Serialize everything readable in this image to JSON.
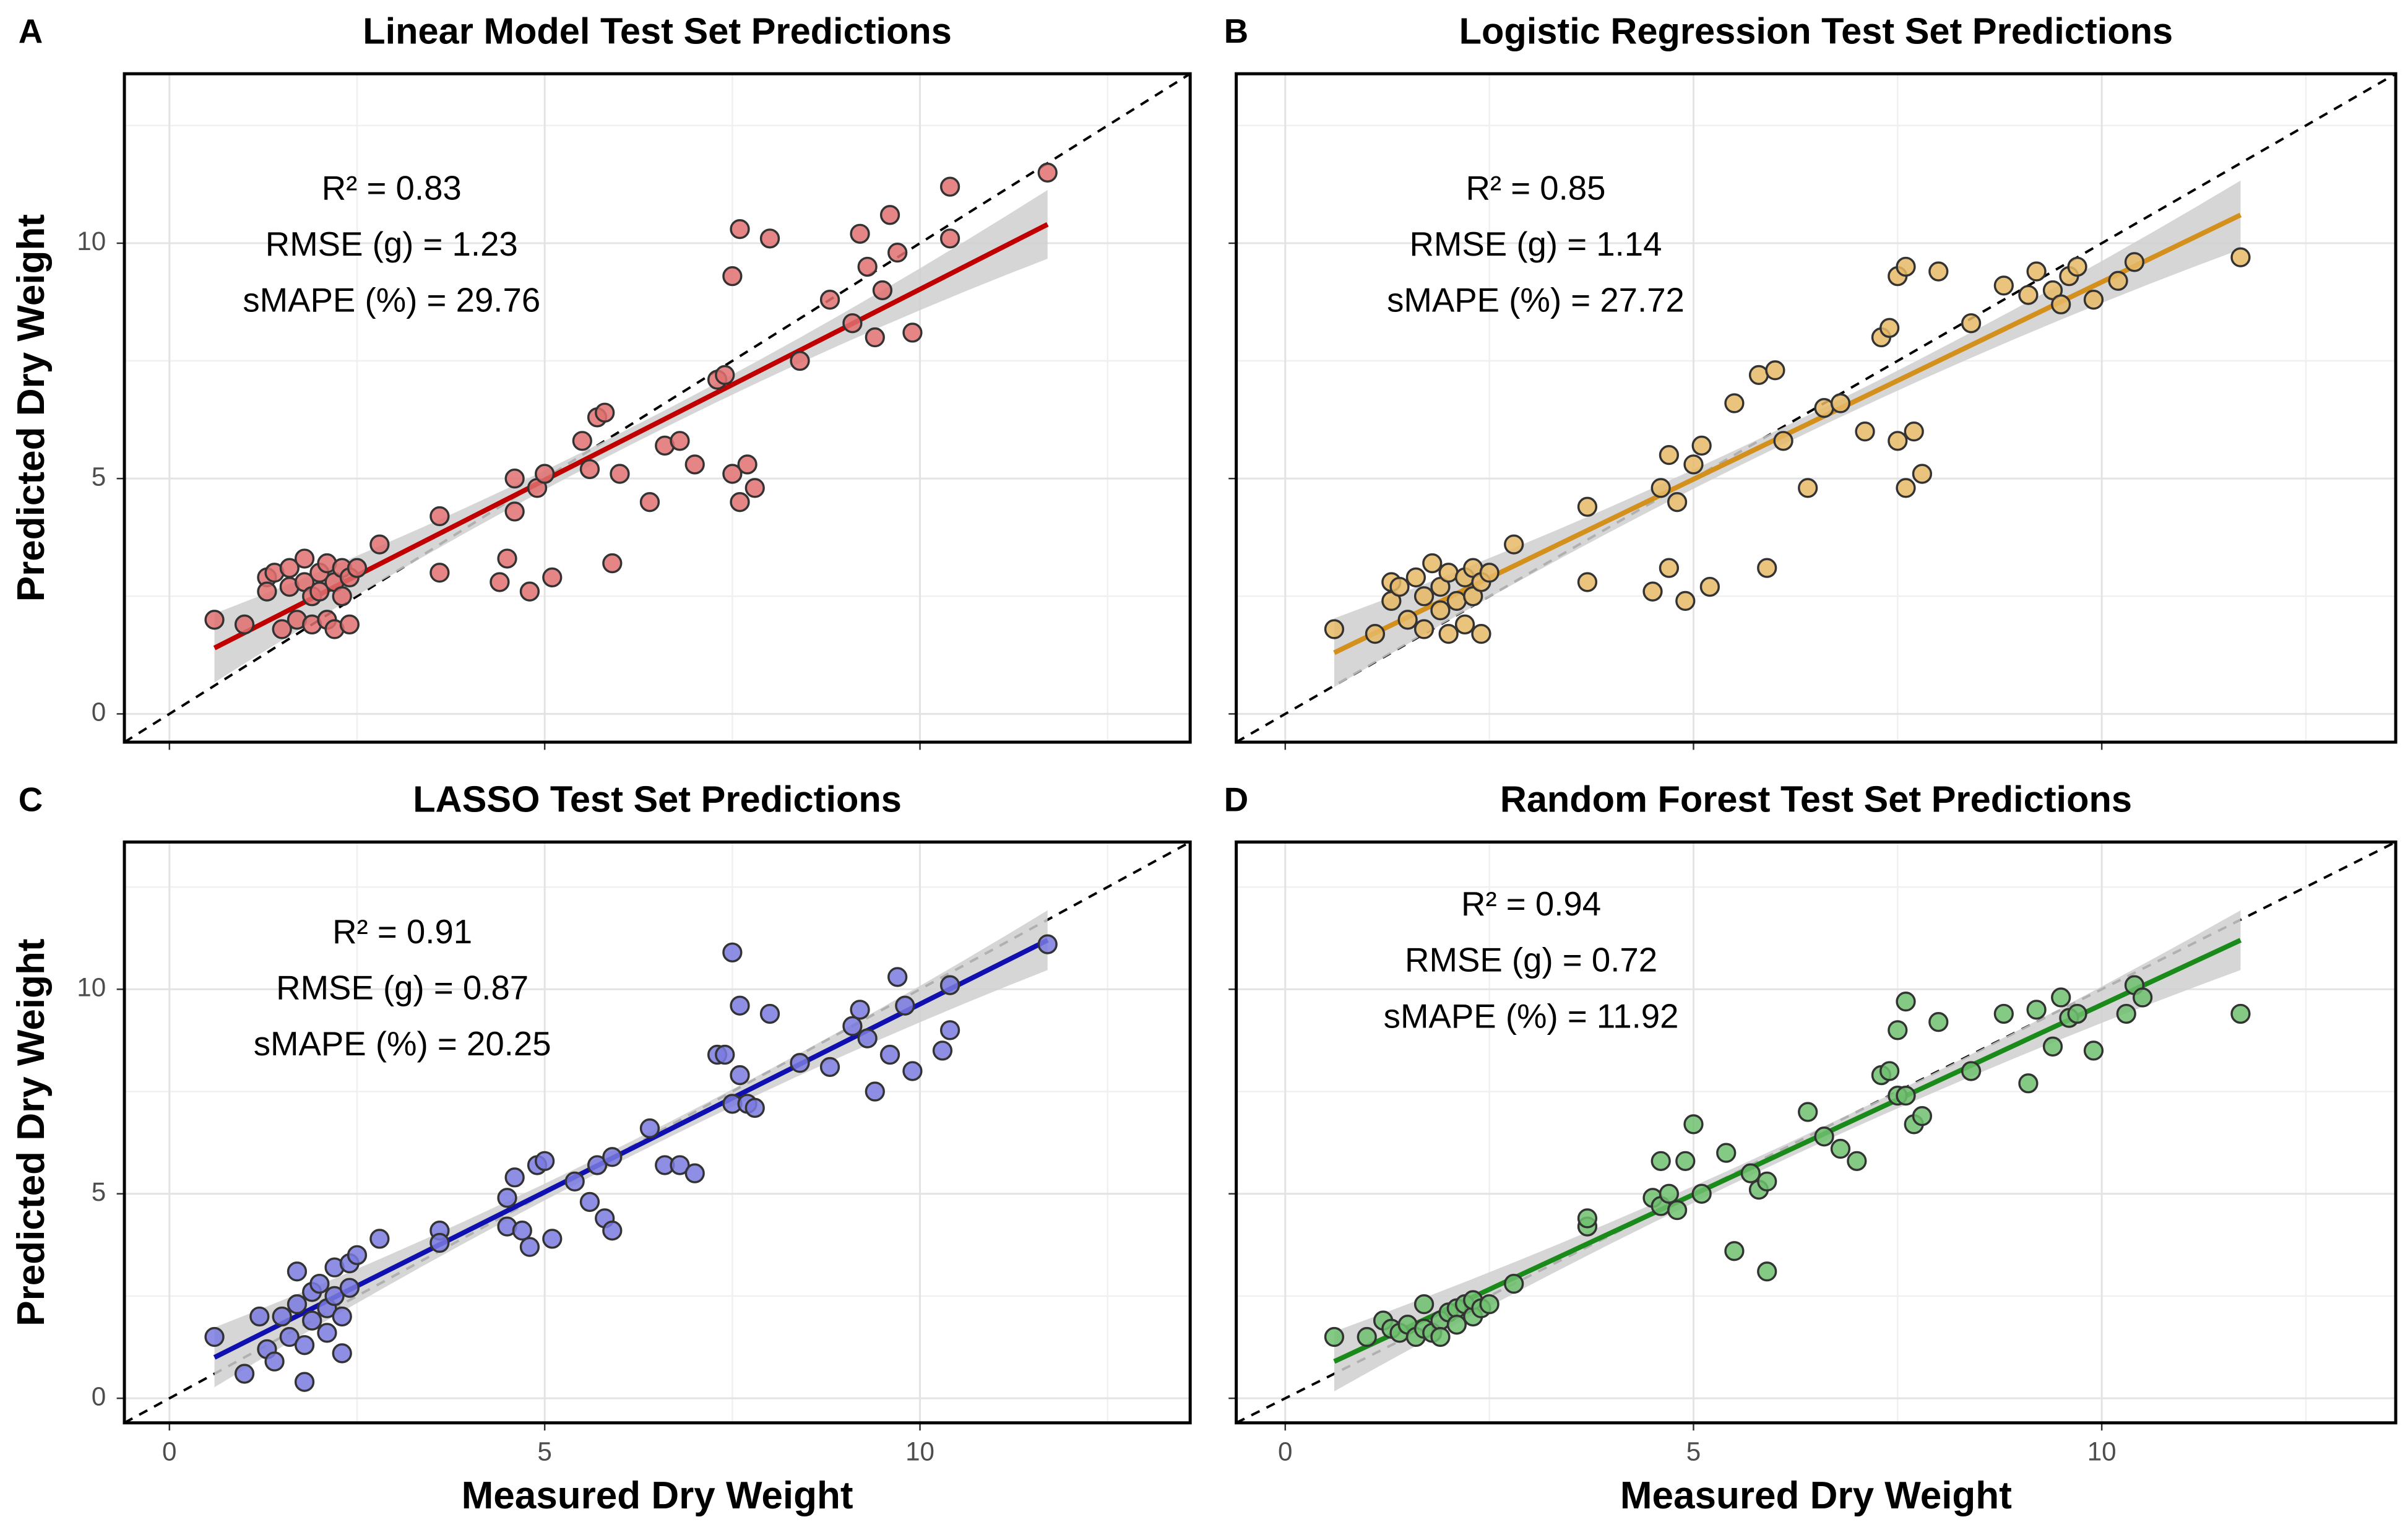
{
  "chart_data": [
    {
      "type": "scatter",
      "panel": "A",
      "title": "Linear Model Test Set Predictions",
      "ylabel": "Predicted Dry Weight",
      "annotations": [
        "R² =  0.83",
        "RMSE (g) =  1.23",
        "sMAPE (%) =  29.76"
      ],
      "color": "#e07070",
      "line_color": "#c00000",
      "x": [
        0.6,
        1.0,
        1.3,
        1.3,
        1.4,
        1.5,
        1.6,
        1.6,
        1.7,
        1.8,
        1.8,
        1.9,
        1.9,
        2.0,
        2.0,
        2.1,
        2.1,
        2.2,
        2.2,
        2.3,
        2.3,
        2.4,
        2.4,
        2.5,
        2.8,
        3.6,
        3.6,
        4.4,
        4.5,
        4.6,
        4.6,
        4.8,
        4.9,
        5.0,
        5.1,
        5.6,
        5.5,
        5.7,
        5.8,
        5.9,
        6.0,
        6.4,
        6.6,
        6.8,
        7.0,
        7.3,
        7.4,
        7.5,
        7.6,
        7.5,
        7.6,
        7.7,
        7.8,
        8.0,
        8.4,
        8.8,
        9.1,
        9.2,
        9.3,
        9.4,
        9.5,
        9.6,
        9.7,
        9.9,
        10.4,
        10.4,
        11.7
      ],
      "y": [
        2.0,
        1.9,
        2.9,
        2.6,
        3.0,
        1.8,
        2.7,
        3.1,
        2.0,
        3.3,
        2.8,
        1.9,
        2.5,
        3.0,
        2.6,
        3.2,
        2.0,
        2.8,
        1.8,
        3.1,
        2.5,
        2.9,
        1.9,
        3.1,
        3.6,
        4.2,
        3.0,
        2.8,
        3.3,
        5.0,
        4.3,
        2.6,
        4.8,
        5.1,
        2.9,
        5.2,
        5.8,
        6.3,
        6.4,
        3.2,
        5.1,
        4.5,
        5.7,
        5.8,
        5.3,
        7.1,
        7.2,
        9.3,
        10.3,
        5.1,
        4.5,
        5.3,
        4.8,
        10.1,
        7.5,
        8.8,
        8.3,
        10.2,
        9.5,
        8.0,
        9.0,
        10.6,
        9.8,
        8.1,
        10.1,
        11.2,
        11.5
      ],
      "fit": {
        "x": [
          0.6,
          11.7
        ],
        "y": [
          1.4,
          10.4
        ]
      },
      "xlim": [
        -0.6,
        13.6
      ],
      "ylim": [
        -0.6,
        13.6
      ],
      "xticks": [
        0,
        5,
        10
      ],
      "yticks": [
        0,
        5,
        10
      ],
      "grid": true
    },
    {
      "type": "scatter",
      "panel": "B",
      "title": "Logistic Regression Test Set Predictions",
      "annotations": [
        "R² =  0.85",
        "RMSE (g) =  1.14",
        "sMAPE (%) =  27.72"
      ],
      "color": "#e6b866",
      "line_color": "#d4901c",
      "x": [
        0.6,
        1.1,
        1.3,
        1.3,
        1.4,
        1.5,
        1.6,
        1.7,
        1.7,
        1.8,
        1.9,
        1.9,
        2.0,
        2.0,
        2.1,
        2.2,
        2.2,
        2.3,
        2.3,
        2.4,
        2.4,
        2.5,
        2.8,
        3.7,
        3.7,
        4.5,
        4.6,
        4.7,
        4.7,
        4.8,
        4.9,
        5.0,
        5.1,
        5.2,
        5.5,
        5.8,
        5.9,
        6.0,
        6.1,
        6.4,
        6.6,
        6.8,
        7.1,
        7.3,
        7.4,
        7.5,
        7.6,
        7.5,
        7.6,
        7.7,
        7.8,
        8.0,
        8.4,
        8.8,
        9.1,
        9.2,
        9.4,
        9.5,
        9.6,
        9.7,
        9.9,
        10.2,
        10.4,
        11.7
      ],
      "y": [
        1.8,
        1.7,
        2.8,
        2.4,
        2.7,
        2.0,
        2.9,
        1.8,
        2.5,
        3.2,
        2.2,
        2.7,
        1.7,
        3.0,
        2.4,
        2.9,
        1.9,
        3.1,
        2.5,
        1.7,
        2.8,
        3.0,
        3.6,
        4.4,
        2.8,
        2.6,
        4.8,
        5.5,
        3.1,
        4.5,
        2.4,
        5.3,
        5.7,
        2.7,
        6.6,
        7.2,
        3.1,
        7.3,
        5.8,
        4.8,
        6.5,
        6.6,
        6.0,
        8.0,
        8.2,
        9.3,
        9.5,
        5.8,
        4.8,
        6.0,
        5.1,
        9.4,
        8.3,
        9.1,
        8.9,
        9.4,
        9.0,
        8.7,
        9.3,
        9.5,
        8.8,
        9.2,
        9.6,
        9.7
      ],
      "fit": {
        "x": [
          0.6,
          11.7
        ],
        "y": [
          1.3,
          10.6
        ]
      },
      "xlim": [
        -0.6,
        13.6
      ],
      "ylim": [
        -0.6,
        13.6
      ],
      "xticks": [
        0,
        5,
        10
      ],
      "yticks": [
        0,
        5,
        10
      ],
      "grid": true
    },
    {
      "type": "scatter",
      "panel": "C",
      "title": "LASSO Test Set Predictions",
      "ylabel": "Predicted Dry Weight",
      "xlabel": "Measured Dry Weight",
      "annotations": [
        "R² =  0.91",
        "RMSE (g) =  0.87",
        "sMAPE (%) =  20.25"
      ],
      "color": "#7a7ae0",
      "line_color": "#1010b0",
      "x": [
        0.6,
        1.0,
        1.2,
        1.3,
        1.4,
        1.5,
        1.6,
        1.7,
        1.7,
        1.8,
        1.8,
        1.9,
        1.9,
        2.0,
        2.1,
        2.1,
        2.2,
        2.2,
        2.3,
        2.3,
        2.4,
        2.4,
        2.5,
        2.8,
        3.6,
        3.6,
        4.5,
        4.5,
        4.6,
        4.7,
        4.8,
        4.9,
        5.0,
        5.1,
        5.4,
        5.6,
        5.7,
        5.8,
        5.9,
        5.9,
        6.4,
        6.6,
        6.8,
        7.0,
        7.3,
        7.4,
        7.5,
        7.6,
        7.5,
        7.6,
        7.7,
        7.8,
        8.0,
        8.4,
        8.8,
        9.1,
        9.2,
        9.3,
        9.4,
        9.6,
        9.7,
        9.8,
        9.9,
        10.3,
        10.4,
        10.4,
        11.7
      ],
      "y": [
        1.5,
        0.6,
        2.0,
        1.2,
        0.9,
        2.0,
        1.5,
        3.1,
        2.3,
        1.3,
        0.4,
        2.6,
        1.9,
        2.8,
        2.2,
        1.6,
        3.2,
        2.5,
        2.0,
        1.1,
        3.3,
        2.7,
        3.5,
        3.9,
        4.1,
        3.8,
        4.9,
        4.2,
        5.4,
        4.1,
        3.7,
        5.7,
        5.8,
        3.9,
        5.3,
        4.8,
        5.7,
        4.4,
        4.1,
        5.9,
        6.6,
        5.7,
        5.7,
        5.5,
        8.4,
        8.4,
        10.9,
        9.6,
        7.2,
        7.9,
        7.2,
        7.1,
        9.4,
        8.2,
        8.1,
        9.1,
        9.5,
        8.8,
        7.5,
        8.4,
        10.3,
        9.6,
        8.0,
        8.5,
        9.0,
        10.1,
        11.1
      ],
      "fit": {
        "x": [
          0.6,
          11.7
        ],
        "y": [
          1.0,
          11.2
        ]
      },
      "xlim": [
        -0.6,
        13.6
      ],
      "ylim": [
        -0.6,
        13.6
      ],
      "xticks": [
        0,
        5,
        10
      ],
      "yticks": [
        0,
        5,
        10
      ],
      "grid": true
    },
    {
      "type": "scatter",
      "panel": "D",
      "title": "Random Forest Test Set Predictions",
      "xlabel": "Measured Dry Weight",
      "annotations": [
        "R² =  0.94",
        "RMSE (g) =  0.72",
        "sMAPE (%) =  11.92"
      ],
      "color": "#6fbf6f",
      "line_color": "#1a8a1a",
      "x": [
        0.6,
        1.0,
        1.2,
        1.3,
        1.4,
        1.5,
        1.6,
        1.7,
        1.7,
        1.8,
        1.9,
        1.9,
        2.0,
        2.1,
        2.1,
        2.2,
        2.3,
        2.3,
        2.4,
        2.5,
        2.8,
        3.7,
        3.7,
        4.5,
        4.6,
        4.6,
        4.7,
        4.8,
        4.9,
        5.0,
        5.1,
        5.4,
        5.5,
        5.7,
        5.8,
        5.9,
        5.9,
        6.4,
        6.6,
        6.8,
        7.0,
        7.3,
        7.4,
        7.5,
        7.6,
        7.5,
        7.6,
        7.7,
        7.8,
        8.0,
        8.4,
        8.8,
        9.1,
        9.2,
        9.4,
        9.5,
        9.6,
        9.7,
        9.9,
        10.3,
        10.4,
        10.5,
        11.7
      ],
      "y": [
        1.5,
        1.5,
        1.9,
        1.7,
        1.6,
        1.8,
        1.5,
        1.7,
        2.3,
        1.6,
        1.9,
        1.5,
        2.1,
        2.2,
        1.8,
        2.3,
        2.0,
        2.4,
        2.2,
        2.3,
        2.8,
        4.2,
        4.4,
        4.9,
        4.7,
        5.8,
        5.0,
        4.6,
        5.8,
        6.7,
        5.0,
        6.0,
        3.6,
        5.5,
        5.1,
        5.3,
        3.1,
        7.0,
        6.4,
        6.1,
        5.8,
        7.9,
        8.0,
        9.0,
        9.7,
        7.4,
        7.4,
        6.7,
        6.9,
        9.2,
        8.0,
        9.4,
        7.7,
        9.5,
        8.6,
        9.8,
        9.3,
        9.4,
        8.5,
        9.4,
        10.1,
        9.8,
        9.4
      ],
      "fit": {
        "x": [
          0.6,
          11.7
        ],
        "y": [
          0.9,
          11.2
        ]
      },
      "xlim": [
        -0.6,
        13.6
      ],
      "ylim": [
        -0.6,
        13.6
      ],
      "xticks": [
        0,
        5,
        10
      ],
      "yticks": [
        0,
        5,
        10
      ],
      "grid": true
    }
  ]
}
